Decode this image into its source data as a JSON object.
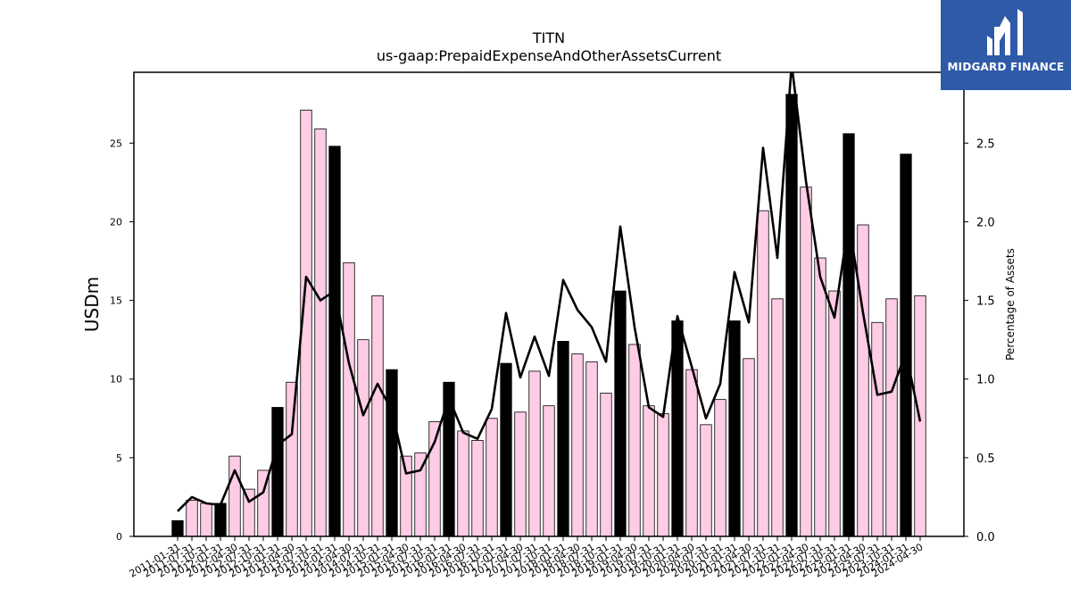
{
  "brand": {
    "name": "MIDGARD FINANCE",
    "background": "#2f5aa8"
  },
  "chart_data": {
    "type": "bar",
    "title": "TITN",
    "subtitle": "us-gaap:PrepaidExpenseAndOtherAssetsCurrent",
    "ylabel": "USDm",
    "y2label": "Percentage of Assets",
    "ylim": [
      0,
      29.5
    ],
    "y2lim": [
      0,
      2.95
    ],
    "yticks": [
      0,
      5,
      10,
      15,
      20,
      25
    ],
    "y2ticks": [
      "0.0",
      "0.5",
      "1.0",
      "1.5",
      "2.0",
      "2.5"
    ],
    "grid": false,
    "colors": {
      "annual_bar": "#000000",
      "quarter_bar": "#ffcce6",
      "line": "#000000"
    },
    "categories": [
      "2011-01-31",
      "2011-07-31",
      "2011-10-31",
      "2012-01-31",
      "2012-04-30",
      "2012-07-31",
      "2012-10-31",
      "2013-01-31",
      "2013-04-30",
      "2013-07-31",
      "2013-10-31",
      "2014-01-31",
      "2014-04-30",
      "2014-07-31",
      "2014-10-31",
      "2015-01-31",
      "2015-04-30",
      "2015-07-31",
      "2015-10-31",
      "2016-01-31",
      "2016-04-30",
      "2016-07-31",
      "2016-10-31",
      "2017-01-31",
      "2017-04-30",
      "2017-07-31",
      "2017-10-31",
      "2018-01-31",
      "2018-04-30",
      "2018-07-31",
      "2018-10-31",
      "2019-01-31",
      "2019-04-30",
      "2019-07-31",
      "2019-10-31",
      "2020-01-31",
      "2020-04-30",
      "2020-07-31",
      "2020-10-31",
      "2021-01-31",
      "2021-04-30",
      "2021-07-31",
      "2021-10-31",
      "2022-01-31",
      "2022-04-30",
      "2022-07-31",
      "2022-10-31",
      "2023-01-31",
      "2023-04-30",
      "2023-07-31",
      "2023-10-31",
      "2024-01-31",
      "2024-04-30"
    ],
    "values": [
      1.0,
      2.3,
      2.1,
      2.1,
      5.1,
      3.0,
      4.2,
      8.2,
      9.8,
      27.1,
      25.9,
      24.8,
      17.4,
      12.5,
      15.3,
      10.6,
      5.1,
      5.3,
      7.3,
      9.8,
      6.7,
      6.1,
      7.5,
      11.0,
      7.9,
      10.5,
      8.3,
      12.4,
      11.6,
      11.1,
      9.1,
      15.6,
      12.2,
      8.3,
      7.8,
      13.7,
      10.6,
      7.1,
      8.7,
      13.7,
      11.3,
      20.7,
      15.1,
      28.1,
      22.2,
      17.7,
      15.6,
      25.6,
      19.8,
      13.6,
      15.1,
      24.3,
      15.3
    ],
    "annual": [
      true,
      false,
      false,
      true,
      false,
      false,
      false,
      true,
      false,
      false,
      false,
      true,
      false,
      false,
      false,
      true,
      false,
      false,
      false,
      true,
      false,
      false,
      false,
      true,
      false,
      false,
      false,
      true,
      false,
      false,
      false,
      true,
      false,
      false,
      false,
      true,
      false,
      false,
      false,
      true,
      false,
      false,
      false,
      true,
      false,
      false,
      false,
      true,
      false,
      false,
      false,
      true,
      false
    ],
    "line_series": {
      "name": "Percentage of Assets",
      "values": [
        0.16,
        0.25,
        0.21,
        0.2,
        0.42,
        0.22,
        0.28,
        0.58,
        0.65,
        1.65,
        1.5,
        1.56,
        1.1,
        0.77,
        0.97,
        0.8,
        0.4,
        0.42,
        0.6,
        0.88,
        0.66,
        0.62,
        0.81,
        1.42,
        1.01,
        1.27,
        1.02,
        1.63,
        1.44,
        1.33,
        1.11,
        1.97,
        1.33,
        0.82,
        0.76,
        1.4,
        1.08,
        0.75,
        0.97,
        1.68,
        1.36,
        2.47,
        1.77,
        3.0,
        2.26,
        1.65,
        1.39,
        2.0,
        1.42,
        0.9,
        0.92,
        1.17,
        0.73
      ]
    }
  }
}
